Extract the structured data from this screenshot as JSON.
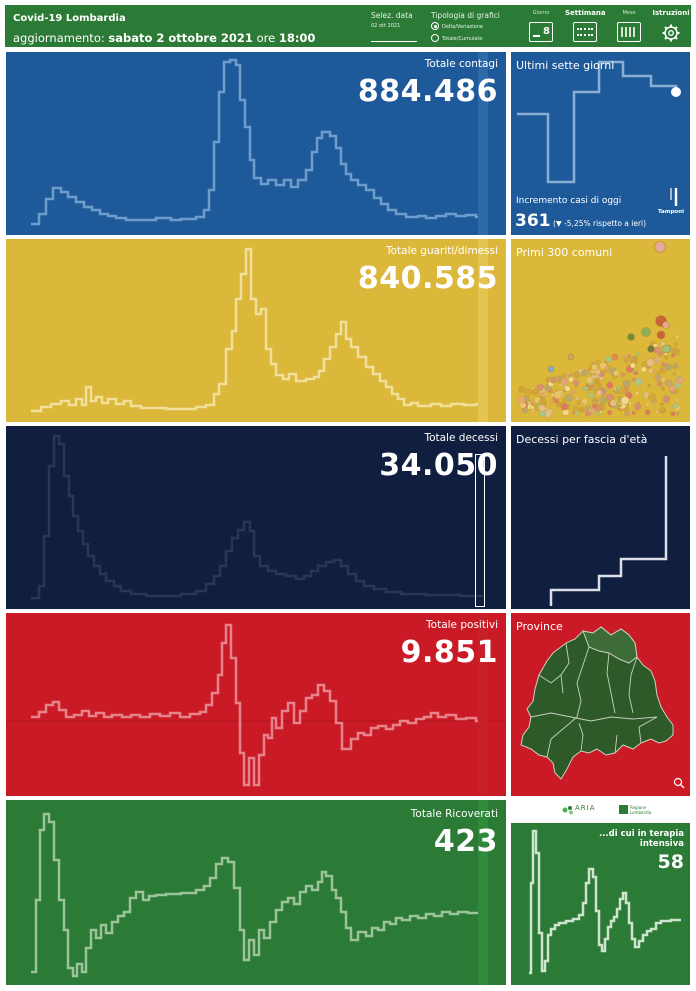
{
  "header": {
    "title": "Covid-19 Lombardia",
    "update_prefix": "aggiornamento:",
    "update_date": "sabato 2 ottobre 2021",
    "update_mid": "ore",
    "update_time": "18:00",
    "date_selector": {
      "label": "Selez. data",
      "value": "02 ott 2021"
    },
    "chart_type": {
      "label": "Tipologia di grafici",
      "options": [
        {
          "label": "Delta/Variazione",
          "selected": true
        },
        {
          "label": "Totale/Cumulato",
          "selected": false
        }
      ]
    },
    "views": [
      {
        "label": "Giorno",
        "icon": "calendar-day-icon",
        "badge": "8",
        "active": false
      },
      {
        "label": "Settimana",
        "icon": "calendar-week-icon",
        "active": true
      },
      {
        "label": "Mese",
        "icon": "calendar-month-icon",
        "active": false
      },
      {
        "label": "Istruzioni",
        "icon": "gear-icon",
        "active": true
      }
    ]
  },
  "colors": {
    "header": "#2b7a35",
    "contagi": "#1e5a99",
    "guariti": "#dbb83a",
    "decessi": "#101e40",
    "positivi": "#c91a25",
    "ricoverati": "#2b7a35"
  },
  "panels": {
    "contagi": {
      "label": "Totale contagi",
      "value": "884.486"
    },
    "guariti": {
      "label": "Totale guariti/dimessi",
      "value": "840.585"
    },
    "decessi": {
      "label": "Totale decessi",
      "value": "34.050"
    },
    "positivi": {
      "label": "Totale positivi",
      "value": "9.851"
    },
    "ricoverati": {
      "label": "Totale Ricoverati",
      "value": "423"
    }
  },
  "side": {
    "seven_days": {
      "title": "Ultimi sette giorni",
      "increment_label": "Incremento casi di oggi",
      "increment_value": "361",
      "increment_change": "(▼ -5,25% rispetto a ieri)",
      "tamponi_label": "Tamponi",
      "tamponi_icon": "test-tube-icon"
    },
    "comuni": {
      "title": "Primi 300 comuni"
    },
    "fasce": {
      "title": "Decessi per fascia d'età"
    },
    "province": {
      "title": "Province",
      "zoom_icon": "zoom-icon"
    },
    "terapia": {
      "label": "...di cui in terapia intensiva",
      "value": "58"
    }
  },
  "logos": {
    "aria": "ARIA",
    "regione": "Regione Lombardia"
  }
}
